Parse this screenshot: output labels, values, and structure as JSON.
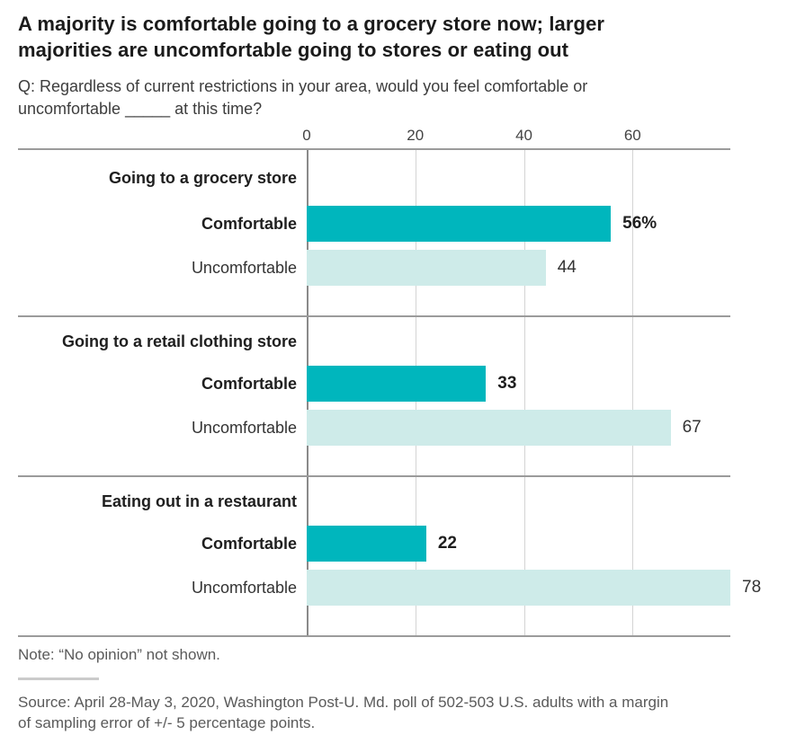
{
  "header": {
    "title_lines": [
      "A majority is comfortable going to a grocery store now; larger",
      "majorities are uncomfortable going to stores or eating out"
    ],
    "question_lines": [
      "Q: Regardless of current restrictions in your area, would you feel comfortable or",
      "uncomfortable _____ at this time?"
    ]
  },
  "axis": {
    "tick_labels": [
      "0",
      "20",
      "40",
      "60"
    ]
  },
  "colors": {
    "comfortable": "#00b6bd",
    "uncomfortable": "#ceebe9",
    "axis_line": "#9b9b9b",
    "gridline": "#d4d4d4",
    "zero_line": "#8a8a8a"
  },
  "chart_data": {
    "type": "bar",
    "orientation": "horizontal",
    "title": "A majority is comfortable going to a grocery store now; larger majorities are uncomfortable going to stores or eating out",
    "subtitle": "Q: Regardless of current restrictions in your area, would you feel comfortable or uncomfortable _____ at this time?",
    "xlim": [
      0,
      78
    ],
    "ticks": [
      0,
      20,
      40,
      60
    ],
    "grid": true,
    "legend_position": "none",
    "unit": "percent",
    "groups": [
      {
        "label": "Going to a grocery store",
        "bars": [
          {
            "name": "Comfortable",
            "value": 56,
            "display": "56%"
          },
          {
            "name": "Uncomfortable",
            "value": 44,
            "display": "44"
          }
        ]
      },
      {
        "label": "Going to a retail clothing store",
        "bars": [
          {
            "name": "Comfortable",
            "value": 33,
            "display": "33"
          },
          {
            "name": "Uncomfortable",
            "value": 67,
            "display": "67"
          }
        ]
      },
      {
        "label": "Eating out in a restaurant",
        "bars": [
          {
            "name": "Comfortable",
            "value": 22,
            "display": "22"
          },
          {
            "name": "Uncomfortable",
            "value": 78,
            "display": "78"
          }
        ]
      }
    ]
  },
  "footer": {
    "note": "Note: “No opinion” not shown.",
    "source_lines": [
      "Source: April 28-May 3, 2020, Washington Post-U. Md. poll of 502-503 U.S. adults with a margin",
      "of sampling error of +/- 5 percentage points."
    ]
  }
}
